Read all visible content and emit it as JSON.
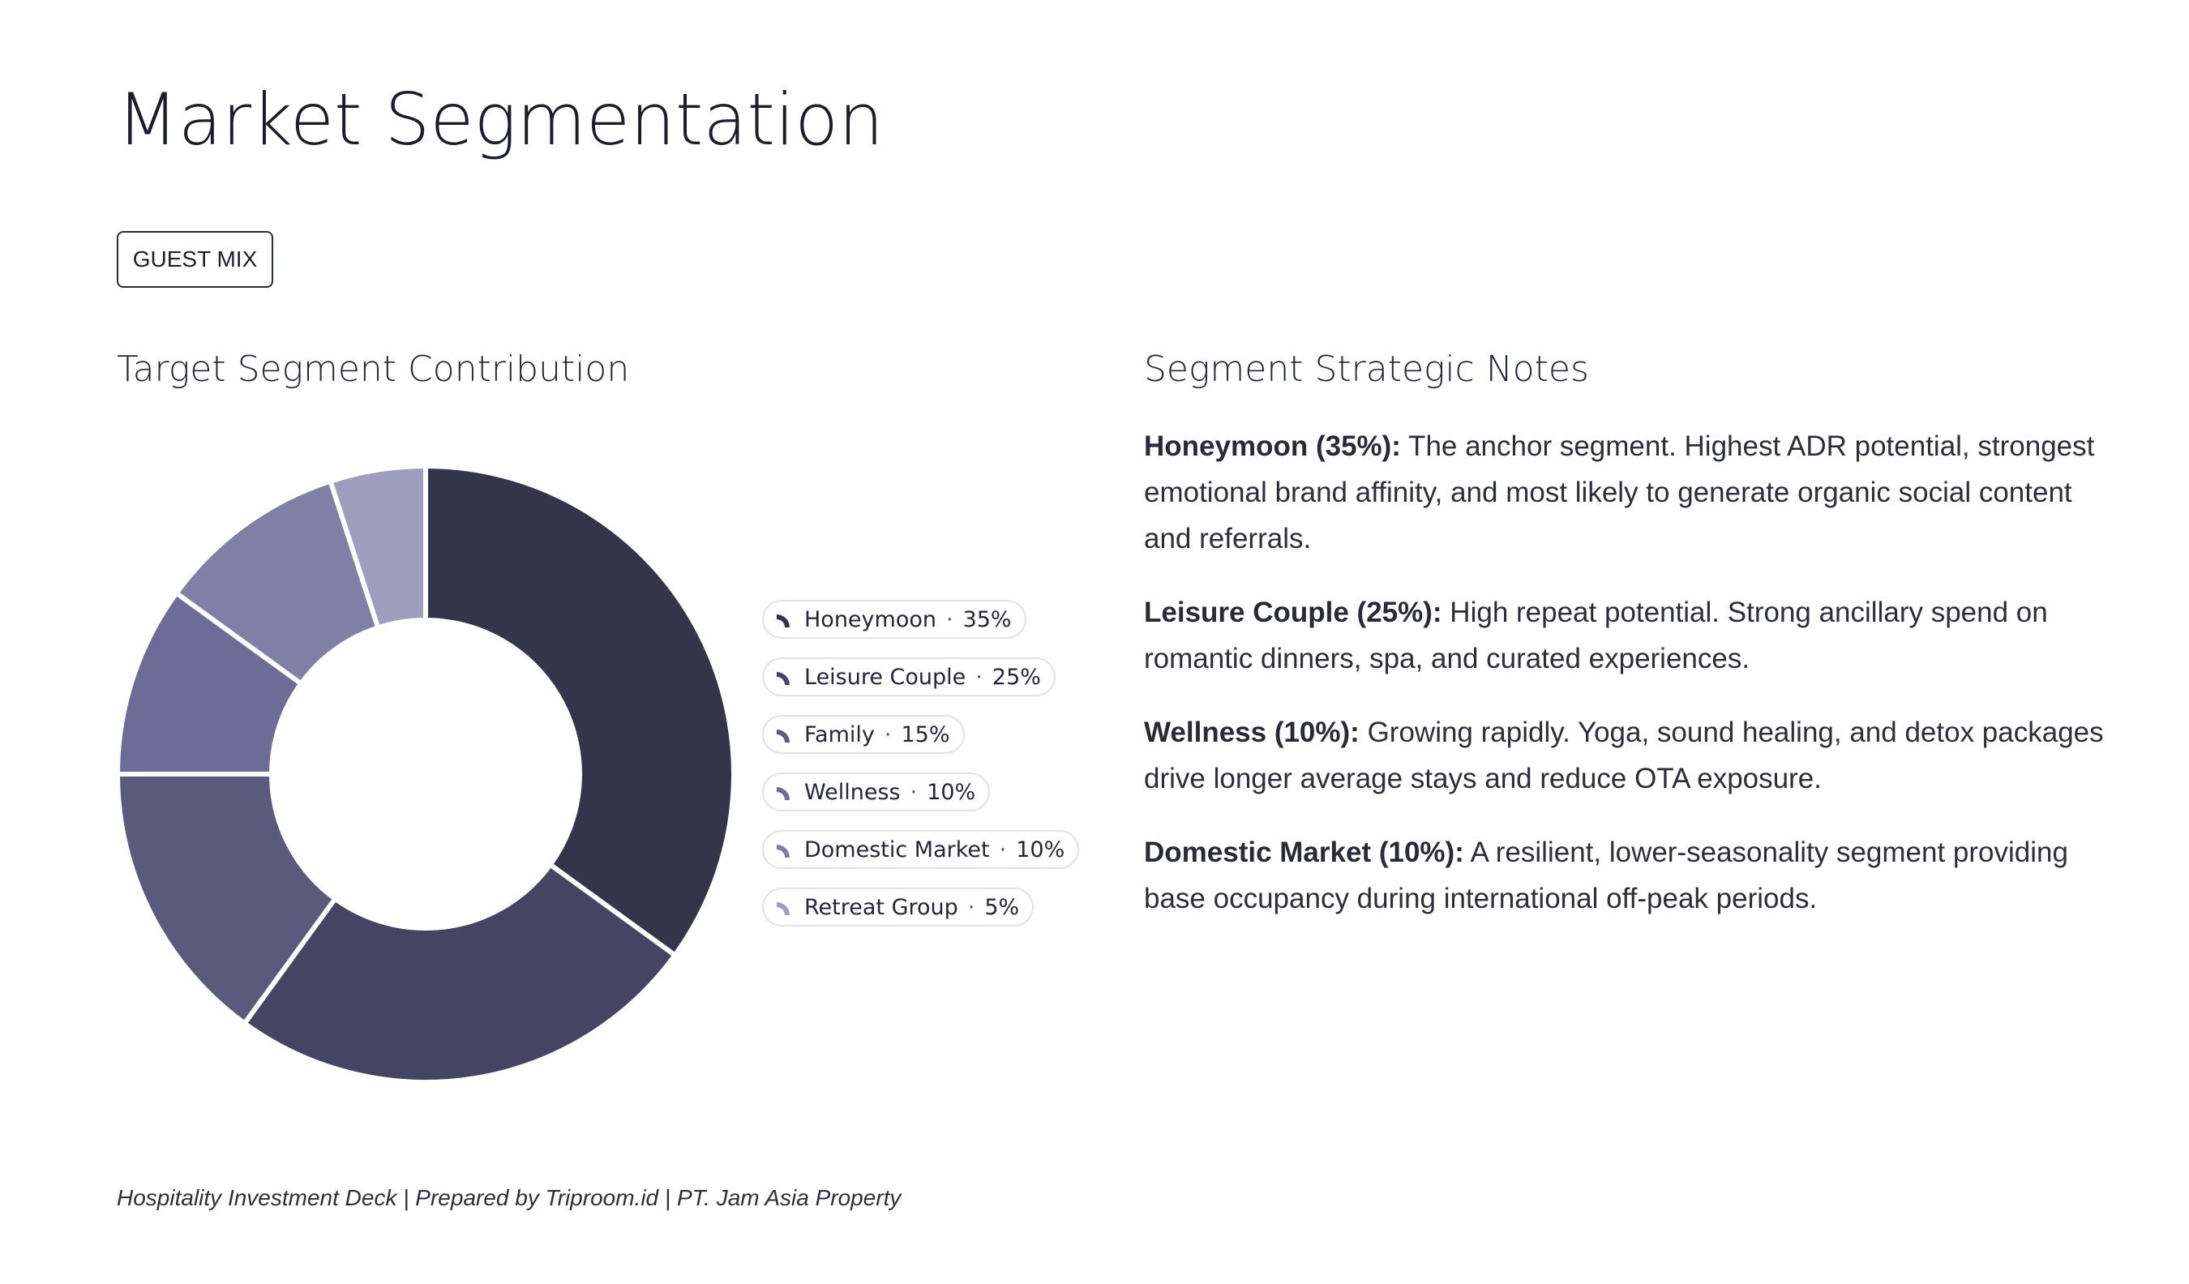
{
  "page": {
    "title": "Market Segmentation",
    "tag": "GUEST MIX",
    "footer": "Hospitality Investment Deck | Prepared by Triproom.id | PT. Jam Asia Property"
  },
  "chart_section": {
    "heading": "Target Segment Contribution"
  },
  "chart_data": {
    "type": "pie",
    "variant": "donut",
    "title": "Target Segment Contribution",
    "legend_position": "right",
    "unit": "%",
    "categories": [
      "Honeymoon",
      "Leisure Couple",
      "Family",
      "Wellness",
      "Domestic Market",
      "Retreat Group"
    ],
    "values": [
      35,
      25,
      15,
      10,
      10,
      5
    ],
    "value_labels": [
      "35%",
      "25%",
      "15%",
      "10%",
      "10%",
      "5%"
    ],
    "colors": [
      "#34344b",
      "#454563",
      "#5a5a7c",
      "#6d6b97",
      "#8080a6",
      "#9e9dbd"
    ]
  },
  "notes_section": {
    "heading": "Segment Strategic Notes",
    "notes": [
      {
        "label": "Honeymoon (35%):",
        "text": " The anchor segment. Highest ADR potential, strongest emotional brand affinity, and most likely to generate organic social content and referrals."
      },
      {
        "label": "Leisure Couple (25%):",
        "text": " High repeat potential. Strong ancillary spend on romantic dinners, spa, and curated experiences."
      },
      {
        "label": "Wellness (10%):",
        "text": " Growing rapidly. Yoga, sound healing, and detox packages drive longer average stays and reduce OTA exposure."
      },
      {
        "label": "Domestic Market (10%):",
        "text": " A resilient, lower-seasonality segment providing base occupancy during international off-peak periods."
      }
    ]
  }
}
